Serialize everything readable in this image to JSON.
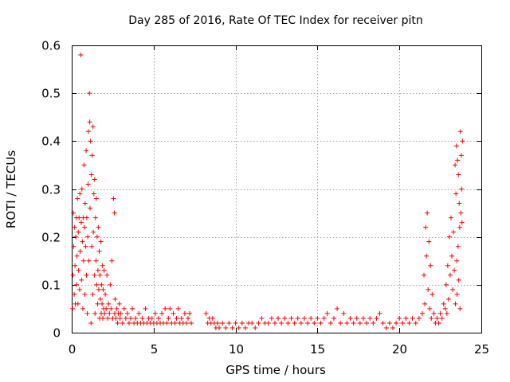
{
  "colors": {
    "series": "#ff0000",
    "grid": "#a0a0a0",
    "axis": "#000000"
  },
  "chart_data": {
    "type": "scatter",
    "title": "Day 285 of 2016, Rate Of TEC Index for receiver pitn",
    "xlabel": "GPS time / hours",
    "ylabel": "ROTI / TECUs",
    "xlim": [
      0,
      25
    ],
    "ylim": [
      0,
      0.6
    ],
    "grid": true,
    "legend": "none",
    "xticks": [
      0,
      5,
      10,
      15,
      20,
      25
    ],
    "yticks": [
      0,
      0.1,
      0.2,
      0.3,
      0.4,
      0.5,
      0.6
    ],
    "xtick_labels": [
      "0",
      "5",
      "10",
      "15",
      "20",
      "25"
    ],
    "ytick_labels": [
      "0",
      "0.1",
      "0.2",
      "0.3",
      "0.4",
      "0.5",
      "0.6"
    ],
    "marker": "plus",
    "series": [
      {
        "name": "ROTI",
        "points": [
          [
            0.05,
            0.05
          ],
          [
            0.08,
            0.12
          ],
          [
            0.1,
            0.25
          ],
          [
            0.12,
            0.18
          ],
          [
            0.15,
            0.08
          ],
          [
            0.18,
            0.22
          ],
          [
            0.2,
            0.14
          ],
          [
            0.22,
            0.06
          ],
          [
            0.25,
            0.2
          ],
          [
            0.28,
            0.24
          ],
          [
            0.3,
            0.1
          ],
          [
            0.32,
            0.16
          ],
          [
            0.35,
            0.28
          ],
          [
            0.38,
            0.06
          ],
          [
            0.4,
            0.21
          ],
          [
            0.42,
            0.13
          ],
          [
            0.45,
            0.24
          ],
          [
            0.48,
            0.09
          ],
          [
            0.5,
            0.29
          ],
          [
            0.52,
            0.17
          ],
          [
            0.55,
            0.58
          ],
          [
            0.58,
            0.23
          ],
          [
            0.6,
            0.11
          ],
          [
            0.62,
            0.3
          ],
          [
            0.65,
            0.19
          ],
          [
            0.68,
            0.05
          ],
          [
            0.7,
            0.24
          ],
          [
            0.72,
            0.15
          ],
          [
            0.75,
            0.35
          ],
          [
            0.78,
            0.22
          ],
          [
            0.8,
            0.08
          ],
          [
            0.82,
            0.27
          ],
          [
            0.85,
            0.18
          ],
          [
            0.88,
            0.38
          ],
          [
            0.9,
            0.12
          ],
          [
            0.92,
            0.24
          ],
          [
            0.95,
            0.04
          ],
          [
            0.98,
            0.2
          ],
          [
            1.0,
            0.31
          ],
          [
            1.02,
            0.42
          ],
          [
            1.05,
            0.15
          ],
          [
            1.08,
            0.5
          ],
          [
            1.1,
            0.44
          ],
          [
            1.12,
            0.26
          ],
          [
            1.15,
            0.4
          ],
          [
            1.18,
            0.02
          ],
          [
            1.2,
            0.33
          ],
          [
            1.22,
            0.18
          ],
          [
            1.25,
            0.37
          ],
          [
            1.28,
            0.08
          ],
          [
            1.3,
            0.43
          ],
          [
            1.32,
            0.21
          ],
          [
            1.35,
            0.29
          ],
          [
            1.38,
            0.12
          ],
          [
            1.4,
            0.32
          ],
          [
            1.42,
            0.04
          ],
          [
            1.45,
            0.24
          ],
          [
            1.48,
            0.15
          ],
          [
            1.5,
            0.28
          ],
          [
            1.52,
            0.1
          ],
          [
            1.55,
            0.2
          ],
          [
            1.58,
            0.06
          ],
          [
            1.6,
            0.13
          ],
          [
            1.62,
            0.22
          ],
          [
            1.65,
            0.09
          ],
          [
            1.68,
            0.17
          ],
          [
            1.7,
            0.03
          ],
          [
            1.72,
            0.12
          ],
          [
            1.75,
            0.07
          ],
          [
            1.78,
            0.19
          ],
          [
            1.8,
            0.04
          ],
          [
            1.82,
            0.1
          ],
          [
            1.85,
            0.06
          ],
          [
            1.88,
            0.14
          ],
          [
            1.9,
            0.03
          ],
          [
            1.92,
            0.09
          ],
          [
            1.95,
            0.05
          ],
          [
            1.98,
            0.13
          ],
          [
            2.0,
            0.04
          ],
          [
            2.05,
            0.08
          ],
          [
            2.1,
            0.05
          ],
          [
            2.15,
            0.12
          ],
          [
            2.2,
            0.03
          ],
          [
            2.25,
            0.06
          ],
          [
            2.3,
            0.04
          ],
          [
            2.35,
            0.1
          ],
          [
            2.4,
            0.05
          ],
          [
            2.45,
            0.15
          ],
          [
            2.5,
            0.03
          ],
          [
            2.55,
            0.28
          ],
          [
            2.6,
            0.25
          ],
          [
            2.62,
            0.04
          ],
          [
            2.65,
            0.07
          ],
          [
            2.7,
            0.03
          ],
          [
            2.75,
            0.05
          ],
          [
            2.8,
            0.02
          ],
          [
            2.85,
            0.04
          ],
          [
            2.9,
            0.06
          ],
          [
            2.95,
            0.03
          ],
          [
            3.0,
            0.04
          ],
          [
            3.1,
            0.02
          ],
          [
            3.2,
            0.05
          ],
          [
            3.3,
            0.03
          ],
          [
            3.4,
            0.04
          ],
          [
            3.5,
            0.02
          ],
          [
            3.6,
            0.03
          ],
          [
            3.7,
            0.05
          ],
          [
            3.8,
            0.02
          ],
          [
            3.9,
            0.03
          ],
          [
            4.0,
            0.02
          ],
          [
            4.1,
            0.04
          ],
          [
            4.2,
            0.02
          ],
          [
            4.3,
            0.03
          ],
          [
            4.4,
            0.02
          ],
          [
            4.5,
            0.05
          ],
          [
            4.6,
            0.02
          ],
          [
            4.7,
            0.03
          ],
          [
            4.8,
            0.02
          ],
          [
            4.9,
            0.03
          ],
          [
            5.0,
            0.02
          ],
          [
            5.1,
            0.04
          ],
          [
            5.2,
            0.02
          ],
          [
            5.3,
            0.03
          ],
          [
            5.4,
            0.02
          ],
          [
            5.5,
            0.04
          ],
          [
            5.6,
            0.02
          ],
          [
            5.7,
            0.05
          ],
          [
            5.8,
            0.02
          ],
          [
            5.9,
            0.03
          ],
          [
            6.0,
            0.05
          ],
          [
            6.1,
            0.02
          ],
          [
            6.2,
            0.04
          ],
          [
            6.3,
            0.02
          ],
          [
            6.4,
            0.03
          ],
          [
            6.5,
            0.05
          ],
          [
            6.6,
            0.02
          ],
          [
            6.7,
            0.03
          ],
          [
            6.8,
            0.02
          ],
          [
            6.9,
            0.04
          ],
          [
            7.0,
            0.02
          ],
          [
            7.1,
            0.03
          ],
          [
            7.2,
            0.04
          ],
          [
            7.3,
            0.02
          ],
          [
            8.2,
            0.04
          ],
          [
            8.3,
            0.02
          ],
          [
            8.4,
            0.03
          ],
          [
            8.5,
            0.02
          ],
          [
            8.6,
            0.03
          ],
          [
            8.7,
            0.02
          ],
          [
            8.8,
            0.01
          ],
          [
            8.9,
            0.02
          ],
          [
            9.0,
            0.01
          ],
          [
            9.2,
            0.02
          ],
          [
            9.4,
            0.01
          ],
          [
            9.6,
            0.02
          ],
          [
            9.8,
            0.01
          ],
          [
            10.0,
            0.02
          ],
          [
            10.2,
            0.01
          ],
          [
            10.4,
            0.02
          ],
          [
            10.6,
            0.01
          ],
          [
            10.8,
            0.02
          ],
          [
            11.0,
            0.02
          ],
          [
            11.2,
            0.01
          ],
          [
            11.4,
            0.02
          ],
          [
            11.6,
            0.03
          ],
          [
            11.8,
            0.02
          ],
          [
            12.0,
            0.02
          ],
          [
            12.2,
            0.03
          ],
          [
            12.4,
            0.02
          ],
          [
            12.6,
            0.03
          ],
          [
            12.8,
            0.02
          ],
          [
            13.0,
            0.03
          ],
          [
            13.2,
            0.02
          ],
          [
            13.4,
            0.03
          ],
          [
            13.6,
            0.02
          ],
          [
            13.8,
            0.03
          ],
          [
            14.0,
            0.02
          ],
          [
            14.2,
            0.03
          ],
          [
            14.4,
            0.02
          ],
          [
            14.6,
            0.03
          ],
          [
            14.8,
            0.02
          ],
          [
            15.0,
            0.03
          ],
          [
            15.2,
            0.02
          ],
          [
            15.4,
            0.03
          ],
          [
            15.6,
            0.04
          ],
          [
            15.8,
            0.02
          ],
          [
            16.0,
            0.03
          ],
          [
            16.2,
            0.05
          ],
          [
            16.4,
            0.02
          ],
          [
            16.6,
            0.04
          ],
          [
            16.8,
            0.02
          ],
          [
            17.0,
            0.03
          ],
          [
            17.2,
            0.02
          ],
          [
            17.4,
            0.03
          ],
          [
            17.6,
            0.02
          ],
          [
            17.8,
            0.03
          ],
          [
            18.0,
            0.02
          ],
          [
            18.2,
            0.03
          ],
          [
            18.4,
            0.02
          ],
          [
            18.6,
            0.03
          ],
          [
            18.8,
            0.04
          ],
          [
            19.0,
            0.02
          ],
          [
            19.2,
            0.01
          ],
          [
            19.4,
            0.02
          ],
          [
            19.6,
            0.01
          ],
          [
            19.8,
            0.02
          ],
          [
            20.0,
            0.03
          ],
          [
            20.2,
            0.02
          ],
          [
            20.4,
            0.03
          ],
          [
            20.6,
            0.02
          ],
          [
            20.8,
            0.03
          ],
          [
            21.0,
            0.02
          ],
          [
            21.2,
            0.03
          ],
          [
            21.4,
            0.04
          ],
          [
            21.5,
            0.12
          ],
          [
            21.55,
            0.06
          ],
          [
            21.6,
            0.22
          ],
          [
            21.65,
            0.16
          ],
          [
            21.7,
            0.25
          ],
          [
            21.75,
            0.09
          ],
          [
            21.8,
            0.19
          ],
          [
            21.85,
            0.05
          ],
          [
            21.9,
            0.14
          ],
          [
            21.95,
            0.03
          ],
          [
            22.0,
            0.08
          ],
          [
            22.1,
            0.04
          ],
          [
            22.2,
            0.02
          ],
          [
            22.3,
            0.03
          ],
          [
            22.4,
            0.02
          ],
          [
            22.5,
            0.04
          ],
          [
            22.6,
            0.03
          ],
          [
            22.7,
            0.06
          ],
          [
            22.8,
            0.05
          ],
          [
            22.85,
            0.1
          ],
          [
            22.9,
            0.04
          ],
          [
            22.95,
            0.14
          ],
          [
            23.0,
            0.07
          ],
          [
            23.05,
            0.2
          ],
          [
            23.1,
            0.12
          ],
          [
            23.15,
            0.24
          ],
          [
            23.2,
            0.16
          ],
          [
            23.25,
            0.09
          ],
          [
            23.3,
            0.21
          ],
          [
            23.35,
            0.13
          ],
          [
            23.4,
            0.35
          ],
          [
            23.42,
            0.06
          ],
          [
            23.45,
            0.29
          ],
          [
            23.48,
            0.39
          ],
          [
            23.5,
            0.15
          ],
          [
            23.52,
            0.08
          ],
          [
            23.55,
            0.36
          ],
          [
            23.58,
            0.18
          ],
          [
            23.6,
            0.33
          ],
          [
            23.62,
            0.11
          ],
          [
            23.65,
            0.27
          ],
          [
            23.68,
            0.22
          ],
          [
            23.7,
            0.05
          ],
          [
            23.72,
            0.42
          ],
          [
            23.75,
            0.25
          ],
          [
            23.78,
            0.37
          ],
          [
            23.8,
            0.3
          ],
          [
            23.82,
            0.23
          ],
          [
            23.85,
            0.4
          ]
        ]
      }
    ]
  }
}
